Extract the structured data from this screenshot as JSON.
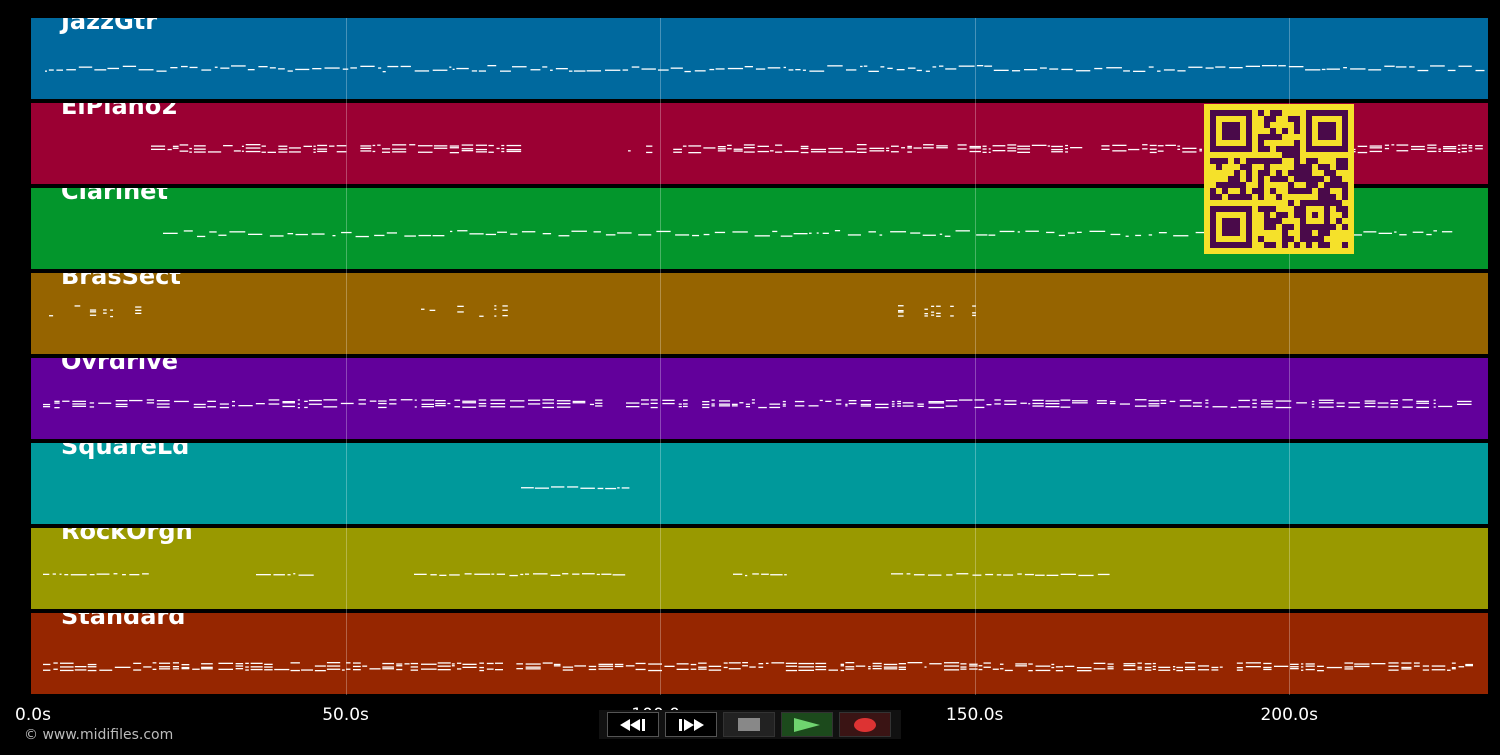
{
  "tracks": [
    {
      "name": "JazzGtr",
      "color": "#00699e"
    },
    {
      "name": "ElPiano2",
      "color": "#9b0033"
    },
    {
      "name": "Clarinet",
      "color": "#03962c"
    },
    {
      "name": "BrasSect",
      "color": "#966400"
    },
    {
      "name": "Ovrdrive",
      "color": "#62009b"
    },
    {
      "name": "SquareLd",
      "color": "#00999b"
    },
    {
      "name": "RockOrgn",
      "color": "#999900"
    },
    {
      "name": "Standard",
      "color": "#962600"
    }
  ],
  "timeline": {
    "max_seconds": 231.6,
    "ticks": [
      {
        "value": 0,
        "label": "0.0s"
      },
      {
        "value": 50,
        "label": "50.0s"
      },
      {
        "value": 100,
        "label": "100.0s"
      },
      {
        "value": 150,
        "label": "150.0s"
      },
      {
        "value": 200,
        "label": "200.0s"
      }
    ]
  },
  "transport": {
    "buttons": [
      {
        "name": "rewind-button",
        "icon": "rewind-icon"
      },
      {
        "name": "fast-forward-button",
        "icon": "fast-forward-icon"
      },
      {
        "name": "stop-button",
        "icon": "stop-icon"
      },
      {
        "name": "play-button",
        "icon": "play-icon"
      },
      {
        "name": "record-button",
        "icon": "record-icon"
      }
    ]
  },
  "footer": {
    "copyright": "© www.midifiles.com"
  },
  "qr_code": {
    "icon": "qr-code-icon"
  }
}
